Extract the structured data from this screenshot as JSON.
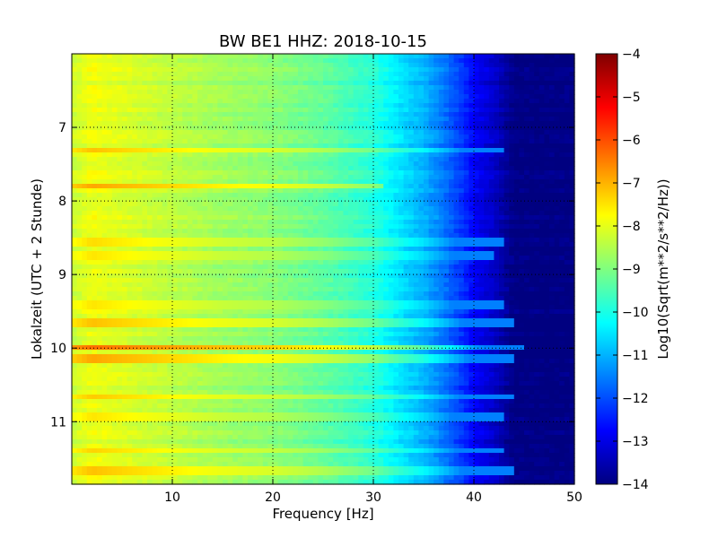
{
  "chart_data": {
    "type": "heatmap",
    "title": "BW BE1 HHZ: 2018-10-15",
    "xlabel": "Frequency [Hz]",
    "ylabel": "Lokalzeit (UTC + 2 Stunde)",
    "xlim": [
      0,
      50
    ],
    "ylim": [
      6.0,
      11.85
    ],
    "y_inverted": true,
    "x_ticks": [
      10,
      20,
      30,
      40,
      50
    ],
    "y_ticks": [
      7,
      8,
      9,
      10,
      11
    ],
    "grid": true,
    "colorbar": {
      "label": "Log10(Sqrt(m**2/s**2/Hz))",
      "range": [
        -14,
        -4
      ],
      "ticks": [
        -4,
        -5,
        -6,
        -7,
        -8,
        -9,
        -10,
        -11,
        -12,
        -13,
        -14
      ],
      "colormap": "jet"
    },
    "frequency_profile": {
      "x": [
        0,
        2,
        5,
        10,
        15,
        20,
        25,
        30,
        33,
        35,
        37,
        39,
        40,
        42,
        44,
        46,
        50
      ],
      "values": [
        -8.3,
        -7.9,
        -8.1,
        -8.4,
        -8.7,
        -8.9,
        -9.3,
        -9.9,
        -10.6,
        -11.0,
        -11.6,
        -12.3,
        -12.8,
        -13.3,
        -14.0,
        -14.0,
        -14.0
      ]
    },
    "bright_bands": [
      {
        "time": 7.3,
        "level": -7.9,
        "until_hz": 43
      },
      {
        "time": 7.8,
        "level": -7.6,
        "until_hz": 31
      },
      {
        "time": 8.55,
        "level": -8.2,
        "until_hz": 43
      },
      {
        "time": 8.75,
        "level": -8.3,
        "until_hz": 42
      },
      {
        "time": 9.4,
        "level": -8.3,
        "until_hz": 43
      },
      {
        "time": 9.65,
        "level": -7.9,
        "until_hz": 44
      },
      {
        "time": 10.0,
        "level": -7.0,
        "until_hz": 45
      },
      {
        "time": 10.15,
        "level": -7.6,
        "until_hz": 44
      },
      {
        "time": 10.65,
        "level": -8.0,
        "until_hz": 44
      },
      {
        "time": 10.95,
        "level": -8.3,
        "until_hz": 43
      },
      {
        "time": 11.4,
        "level": -8.1,
        "until_hz": 43
      },
      {
        "time": 11.65,
        "level": -7.9,
        "until_hz": 44
      }
    ]
  }
}
